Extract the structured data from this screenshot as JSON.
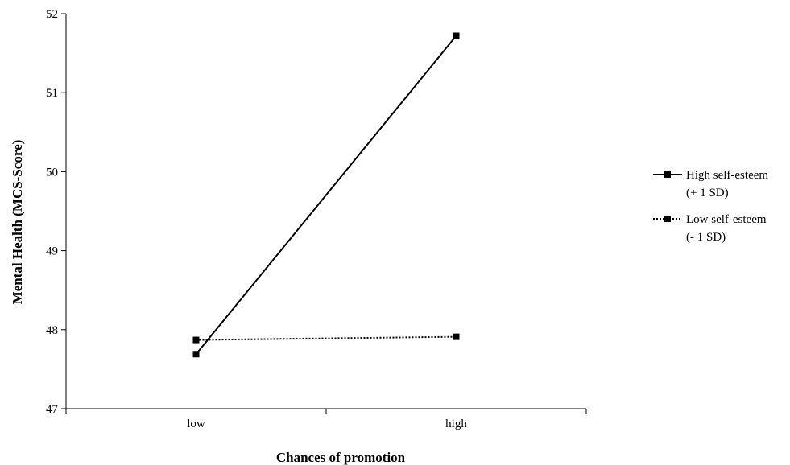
{
  "chart_data": {
    "type": "line",
    "title": "",
    "xlabel": "Chances of promotion",
    "ylabel": "Mental Health (MCS-Score)",
    "categories": [
      "low",
      "high"
    ],
    "ylim": [
      47,
      52
    ],
    "yticks": [
      47,
      48,
      49,
      50,
      51,
      52
    ],
    "grid": false,
    "legend_position": "right",
    "series": [
      {
        "name_lines": [
          "High self-esteem",
          "(+ 1 SD)"
        ],
        "values": [
          47.69,
          51.72
        ],
        "line_style": "solid",
        "marker": "square",
        "color": "#000000"
      },
      {
        "name_lines": [
          "Low self-esteem",
          " (- 1 SD)"
        ],
        "values": [
          47.87,
          47.91
        ],
        "line_style": "dotted",
        "marker": "square",
        "color": "#000000"
      }
    ]
  }
}
